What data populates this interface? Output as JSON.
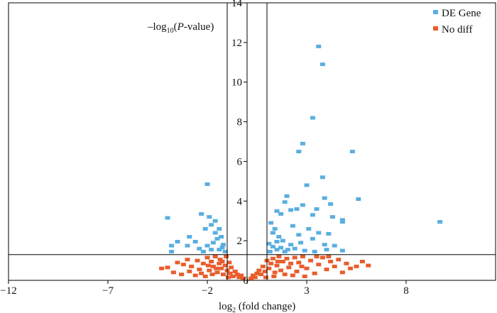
{
  "chart_data": {
    "type": "scatter",
    "title": "",
    "xlabel_main": "log",
    "xlabel_sub": "2",
    "xlabel_rest": " (fold change)",
    "ylabel_pre": "–log",
    "ylabel_sub": "10",
    "ylabel_open": "(",
    "ylabel_italic": "P",
    "ylabel_rest": "-value)",
    "xlim": [
      -12,
      12.5
    ],
    "ylim": [
      0,
      14
    ],
    "xticks": [
      -12,
      -7,
      -2,
      3,
      8
    ],
    "xtick_labels": [
      "−12",
      "−7",
      "−2",
      "3",
      "8"
    ],
    "yticks": [
      0,
      2,
      4,
      6,
      8,
      10,
      12,
      14
    ],
    "ytick_labels": [
      "0",
      "2",
      "4",
      "6",
      "8",
      "10",
      "12",
      "14"
    ],
    "thresholds": {
      "x": [
        -1,
        1
      ],
      "y": 1.3
    },
    "legend_position": "top-right",
    "series": [
      {
        "name": "DE Gene",
        "color": "#5aaee0",
        "points": [
          [
            3.6,
            11.8
          ],
          [
            3.8,
            10.9
          ],
          [
            3.3,
            8.2
          ],
          [
            2.8,
            6.9
          ],
          [
            2.6,
            6.5
          ],
          [
            5.3,
            6.5
          ],
          [
            3.8,
            5.2
          ],
          [
            3.0,
            4.8
          ],
          [
            -2.0,
            4.85
          ],
          [
            5.6,
            4.1
          ],
          [
            3.9,
            4.15
          ],
          [
            2.0,
            4.25
          ],
          [
            1.9,
            3.95
          ],
          [
            4.2,
            3.85
          ],
          [
            2.8,
            3.8
          ],
          [
            2.5,
            3.6
          ],
          [
            3.5,
            3.6
          ],
          [
            2.2,
            3.55
          ],
          [
            1.5,
            3.5
          ],
          [
            1.7,
            3.35
          ],
          [
            3.3,
            3.3
          ],
          [
            4.3,
            3.2
          ],
          [
            -1.9,
            3.2
          ],
          [
            -2.3,
            3.35
          ],
          [
            -4.0,
            3.15
          ],
          [
            -1.6,
            3.0
          ],
          [
            -1.8,
            2.8
          ],
          [
            -2.1,
            2.6
          ],
          [
            4.8,
            2.95
          ],
          [
            4.8,
            3.05
          ],
          [
            9.7,
            2.95
          ],
          [
            -1.4,
            2.6
          ],
          [
            -1.6,
            2.4
          ],
          [
            -1.3,
            2.2
          ],
          [
            -1.5,
            2.1
          ],
          [
            -2.9,
            2.2
          ],
          [
            -2.6,
            1.95
          ],
          [
            -3.0,
            1.75
          ],
          [
            -3.5,
            1.95
          ],
          [
            -3.8,
            1.75
          ],
          [
            -2.4,
            1.6
          ],
          [
            -2.0,
            1.75
          ],
          [
            -1.7,
            1.9
          ],
          [
            -1.2,
            1.8
          ],
          [
            -1.4,
            1.55
          ],
          [
            -1.1,
            1.45
          ],
          [
            -1.25,
            1.65
          ],
          [
            -1.8,
            1.55
          ],
          [
            -2.2,
            1.45
          ],
          [
            -3.8,
            1.45
          ],
          [
            1.2,
            2.9
          ],
          [
            1.4,
            2.6
          ],
          [
            1.3,
            2.4
          ],
          [
            1.6,
            2.2
          ],
          [
            1.8,
            2.0
          ],
          [
            1.1,
            1.85
          ],
          [
            1.3,
            1.7
          ],
          [
            1.5,
            1.55
          ],
          [
            1.9,
            1.45
          ],
          [
            1.15,
            1.45
          ],
          [
            2.4,
            1.6
          ],
          [
            2.7,
            1.9
          ],
          [
            3.3,
            2.1
          ],
          [
            3.6,
            2.4
          ],
          [
            3.1,
            2.6
          ],
          [
            4.1,
            2.35
          ],
          [
            4.4,
            1.75
          ],
          [
            4.0,
            1.55
          ],
          [
            4.8,
            1.5
          ],
          [
            3.9,
            1.8
          ],
          [
            2.9,
            1.5
          ],
          [
            2.2,
            1.8
          ],
          [
            1.7,
            1.65
          ],
          [
            2.05,
            1.55
          ],
          [
            2.6,
            2.3
          ],
          [
            3.4,
            1.45
          ],
          [
            2.3,
            2.75
          ],
          [
            1.5,
            1.95
          ]
        ]
      },
      {
        "name": "No diff",
        "color": "#e85d2c",
        "points": [
          [
            -4.3,
            0.6
          ],
          [
            -4.0,
            0.65
          ],
          [
            -3.5,
            0.9
          ],
          [
            -3.2,
            0.8
          ],
          [
            -3.0,
            1.05
          ],
          [
            -2.8,
            0.7
          ],
          [
            -2.5,
            1.0
          ],
          [
            -2.4,
            0.55
          ],
          [
            -2.2,
            0.85
          ],
          [
            -2.0,
            1.15
          ],
          [
            -1.9,
            0.5
          ],
          [
            -1.8,
            0.95
          ],
          [
            -1.7,
            0.7
          ],
          [
            -1.6,
            1.2
          ],
          [
            -1.5,
            0.4
          ],
          [
            -1.4,
            0.85
          ],
          [
            -1.35,
            1.05
          ],
          [
            -1.3,
            0.6
          ],
          [
            -1.2,
            0.3
          ],
          [
            -1.1,
            0.75
          ],
          [
            -1.0,
            0.5
          ],
          [
            -0.9,
            0.9
          ],
          [
            -0.85,
            0.35
          ],
          [
            -0.8,
            0.65
          ],
          [
            -0.7,
            0.2
          ],
          [
            -0.6,
            0.45
          ],
          [
            -0.5,
            0.3
          ],
          [
            -0.4,
            0.15
          ],
          [
            -0.3,
            0.25
          ],
          [
            -0.2,
            0.1
          ],
          [
            -3.7,
            0.4
          ],
          [
            -3.3,
            0.3
          ],
          [
            -2.9,
            0.45
          ],
          [
            -2.6,
            0.25
          ],
          [
            -2.3,
            0.35
          ],
          [
            -2.1,
            0.2
          ],
          [
            -1.95,
            0.75
          ],
          [
            -1.75,
            0.3
          ],
          [
            -1.55,
            0.6
          ],
          [
            -1.25,
            0.95
          ],
          [
            -1.05,
            1.2
          ],
          [
            -0.95,
            0.15
          ],
          [
            0.2,
            0.1
          ],
          [
            0.3,
            0.25
          ],
          [
            0.4,
            0.15
          ],
          [
            0.5,
            0.35
          ],
          [
            0.6,
            0.5
          ],
          [
            0.7,
            0.3
          ],
          [
            0.8,
            0.7
          ],
          [
            0.9,
            0.45
          ],
          [
            1.0,
            1.0
          ],
          [
            1.1,
            0.6
          ],
          [
            1.2,
            0.85
          ],
          [
            1.3,
            1.1
          ],
          [
            1.4,
            0.4
          ],
          [
            1.5,
            0.75
          ],
          [
            1.6,
            1.2
          ],
          [
            1.7,
            0.5
          ],
          [
            1.8,
            0.95
          ],
          [
            1.9,
            0.3
          ],
          [
            2.0,
            1.1
          ],
          [
            2.1,
            0.65
          ],
          [
            2.2,
            0.85
          ],
          [
            2.4,
            1.15
          ],
          [
            2.5,
            0.45
          ],
          [
            2.6,
            0.9
          ],
          [
            2.8,
            1.2
          ],
          [
            3.0,
            0.6
          ],
          [
            3.2,
            1.0
          ],
          [
            3.4,
            0.35
          ],
          [
            3.6,
            0.8
          ],
          [
            3.8,
            1.15
          ],
          [
            4.0,
            0.55
          ],
          [
            4.2,
            0.95
          ],
          [
            4.4,
            0.7
          ],
          [
            4.6,
            1.05
          ],
          [
            4.8,
            0.4
          ],
          [
            5.0,
            0.85
          ],
          [
            5.2,
            0.6
          ],
          [
            5.5,
            0.7
          ],
          [
            5.8,
            0.95
          ],
          [
            6.1,
            0.75
          ],
          [
            2.9,
            0.2
          ],
          [
            2.3,
            0.25
          ],
          [
            1.35,
            0.2
          ],
          [
            3.5,
            1.2
          ],
          [
            4.1,
            1.2
          ],
          [
            0.95,
            0.15
          ],
          [
            1.55,
            0.95
          ],
          [
            2.75,
            0.7
          ]
        ]
      }
    ]
  }
}
